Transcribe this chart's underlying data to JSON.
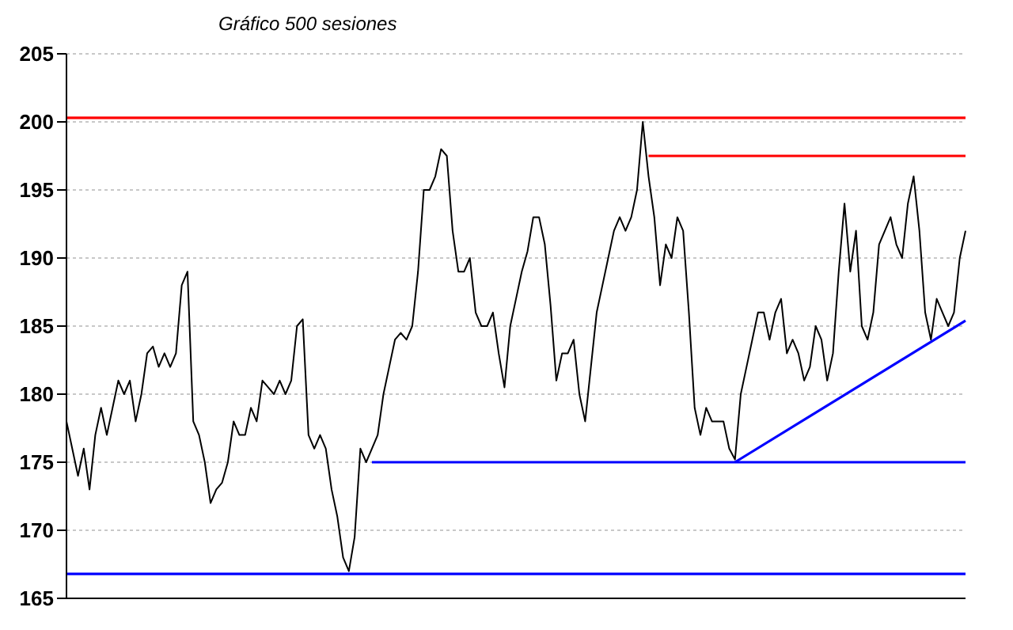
{
  "chart_data": {
    "type": "line",
    "title": "Gráfico 500 sesiones",
    "categories": [
      null,
      null,
      null,
      null,
      null,
      null,
      null,
      null,
      null,
      null,
      null,
      null,
      null,
      null,
      null,
      null,
      null,
      null,
      null,
      null,
      null,
      null,
      null,
      null,
      null,
      null,
      null,
      null,
      null,
      null,
      null,
      null,
      null,
      null,
      null,
      null,
      null,
      null,
      null,
      null,
      null,
      null,
      null,
      null,
      null,
      null,
      null,
      null,
      null,
      null,
      null,
      null,
      null,
      null,
      null,
      null,
      null,
      null,
      null,
      null,
      null,
      null,
      null,
      null,
      null,
      null,
      null,
      null,
      null,
      null,
      null,
      null,
      null,
      null,
      null,
      null,
      null,
      null,
      null,
      null,
      null,
      null,
      null,
      null,
      null,
      null,
      null,
      null,
      null,
      null,
      null,
      null,
      null,
      null,
      null,
      null,
      null,
      null,
      null,
      null,
      null,
      null,
      null,
      null,
      null,
      null,
      null,
      null,
      null,
      null,
      null,
      null,
      null,
      null,
      null,
      null,
      null,
      null,
      null,
      null,
      null,
      null,
      null,
      null,
      null,
      null,
      null,
      null,
      null,
      null,
      null,
      null,
      null,
      null,
      null,
      null,
      null,
      null,
      null,
      null,
      null,
      null,
      null,
      null,
      null,
      null,
      null,
      null,
      null,
      null,
      null,
      null,
      null,
      null,
      null,
      null,
      null
    ],
    "ylim": [
      165,
      205
    ],
    "yticks": [
      165,
      170,
      175,
      180,
      185,
      190,
      195,
      200,
      205
    ],
    "tick_labels": "y",
    "grid": "y",
    "legend": false,
    "marker": "none",
    "series": [
      {
        "color": "#000000",
        "values": [
          178,
          176,
          174,
          176,
          173,
          177,
          179,
          177,
          179,
          181,
          180,
          181,
          178,
          180,
          183,
          183.5,
          182,
          183,
          182,
          183,
          188,
          189,
          178,
          177,
          175,
          172,
          173,
          173.5,
          175,
          178,
          177,
          177,
          179,
          178,
          181,
          180.5,
          180,
          181,
          180,
          181,
          185,
          185.5,
          177,
          176,
          177,
          176,
          173,
          171,
          168,
          167,
          169.5,
          176,
          175,
          176,
          177,
          180,
          182,
          184,
          184.5,
          184,
          185,
          189,
          195,
          195,
          196,
          198,
          197.5,
          192,
          189,
          189,
          190,
          186,
          185,
          185,
          186,
          183,
          180.5,
          185,
          187,
          189,
          190.5,
          193,
          193,
          191,
          186.5,
          181,
          183,
          183,
          184,
          180,
          178,
          182,
          186,
          188,
          190,
          192,
          193,
          192,
          193,
          195,
          200,
          196,
          193,
          188,
          191,
          190,
          193,
          192,
          186,
          179,
          177,
          179,
          178,
          178,
          178,
          176,
          175.2,
          180,
          182,
          184,
          186,
          186,
          184,
          186,
          187,
          183,
          184,
          183,
          181,
          182,
          185,
          184,
          181,
          183,
          189,
          194,
          189,
          192,
          185,
          184,
          186,
          191,
          192,
          193,
          191,
          190,
          194,
          196,
          192,
          186,
          184,
          187,
          186,
          185,
          186,
          190,
          192
        ]
      },
      {
        "color": "#0000ff",
        "values": [
          null,
          null,
          null,
          null,
          null,
          null,
          null,
          null,
          null,
          null,
          null,
          null,
          null,
          null,
          null,
          null,
          null,
          null,
          null,
          null,
          null,
          null,
          null,
          null,
          null,
          null,
          null,
          null,
          null,
          null,
          null,
          null,
          null,
          null,
          null,
          null,
          null,
          null,
          null,
          null,
          null,
          null,
          null,
          null,
          null,
          null,
          null,
          null,
          null,
          null,
          null,
          null,
          null,
          null,
          null,
          null,
          null,
          null,
          null,
          null,
          null,
          null,
          null,
          null,
          null,
          null,
          null,
          null,
          null,
          null,
          null,
          null,
          null,
          null,
          null,
          null,
          null,
          null,
          null,
          null,
          null,
          null,
          null,
          null,
          null,
          null,
          null,
          null,
          null,
          null,
          null,
          null,
          null,
          null,
          null,
          null,
          null,
          null,
          null,
          null,
          null,
          null,
          null,
          null,
          null,
          null,
          null,
          null,
          null,
          null,
          null,
          null,
          null,
          null,
          null,
          null,
          175,
          null,
          null,
          null,
          null,
          null,
          null,
          null,
          null,
          null,
          null,
          null,
          null,
          null,
          null,
          null,
          null,
          null,
          null,
          null,
          null,
          null,
          null,
          null,
          null,
          null,
          null,
          null,
          null,
          null,
          null,
          null,
          null,
          null,
          null,
          null,
          null,
          null,
          null,
          null,
          185.4
        ]
      },
      {
        "color": "#0000ff",
        "values": [
          null,
          null,
          null,
          null,
          null,
          null,
          null,
          null,
          null,
          null,
          null,
          null,
          null,
          null,
          null,
          null,
          null,
          null,
          null,
          null,
          null,
          null,
          null,
          null,
          null,
          null,
          null,
          null,
          null,
          null,
          null,
          null,
          null,
          null,
          null,
          null,
          null,
          null,
          null,
          null,
          null,
          null,
          null,
          null,
          null,
          null,
          null,
          null,
          null,
          null,
          null,
          null,
          null,
          175,
          null,
          null,
          null,
          null,
          null,
          null,
          null,
          null,
          null,
          null,
          null,
          null,
          null,
          null,
          null,
          null,
          null,
          null,
          null,
          null,
          null,
          null,
          null,
          null,
          null,
          null,
          null,
          null,
          null,
          null,
          null,
          null,
          null,
          null,
          null,
          null,
          null,
          null,
          null,
          null,
          null,
          null,
          null,
          null,
          null,
          null,
          null,
          null,
          null,
          null,
          null,
          null,
          null,
          null,
          null,
          null,
          null,
          null,
          null,
          null,
          null,
          null,
          null,
          null,
          null,
          null,
          null,
          null,
          null,
          null,
          null,
          null,
          null,
          null,
          null,
          null,
          null,
          null,
          null,
          null,
          null,
          null,
          null,
          null,
          null,
          null,
          null,
          null,
          null,
          null,
          null,
          null,
          null,
          null,
          null,
          null,
          null,
          null,
          null,
          null,
          null,
          null,
          175
        ]
      },
      {
        "color": "#ff0000",
        "values": [
          null,
          null,
          null,
          null,
          null,
          null,
          null,
          null,
          null,
          null,
          null,
          null,
          null,
          null,
          null,
          null,
          null,
          null,
          null,
          null,
          null,
          null,
          null,
          null,
          null,
          null,
          null,
          null,
          null,
          null,
          null,
          null,
          null,
          null,
          null,
          null,
          null,
          null,
          null,
          null,
          null,
          null,
          null,
          null,
          null,
          null,
          null,
          null,
          null,
          null,
          null,
          null,
          null,
          null,
          null,
          null,
          null,
          null,
          null,
          null,
          null,
          null,
          null,
          null,
          null,
          null,
          null,
          null,
          null,
          null,
          null,
          null,
          null,
          null,
          null,
          null,
          null,
          null,
          null,
          null,
          null,
          null,
          null,
          null,
          null,
          null,
          null,
          null,
          null,
          null,
          null,
          null,
          null,
          null,
          null,
          null,
          null,
          null,
          null,
          null,
          null,
          197.5,
          null,
          null,
          null,
          null,
          null,
          null,
          null,
          null,
          null,
          null,
          null,
          null,
          null,
          null,
          null,
          null,
          null,
          null,
          null,
          null,
          null,
          null,
          null,
          null,
          null,
          null,
          null,
          null,
          null,
          null,
          null,
          null,
          null,
          null,
          null,
          null,
          null,
          null,
          null,
          null,
          null,
          null,
          null,
          null,
          null,
          null,
          null,
          null,
          null,
          null,
          null,
          null,
          null,
          null,
          197.5
        ]
      }
    ],
    "ref_lines": [
      {
        "axis": "y",
        "value": 200.3,
        "color": "#ff0000"
      },
      {
        "axis": "y",
        "value": 166.8,
        "color": "#0000ff"
      }
    ]
  }
}
